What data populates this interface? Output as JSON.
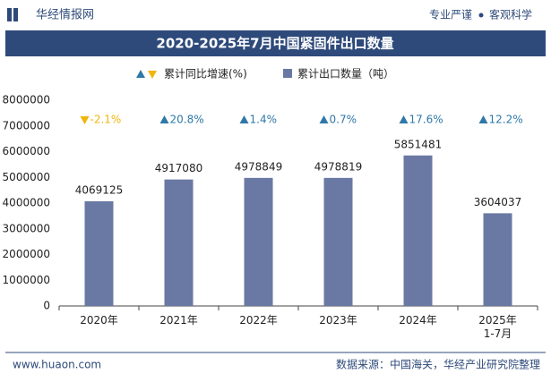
{
  "header": {
    "logo": "华经情报网",
    "slogan_left": "专业严谨",
    "slogan_right": "客观科学"
  },
  "chart_data": {
    "type": "bar",
    "title": "2020-2025年7月中国紧固件出口数量",
    "categories": [
      "2020年",
      "2021年",
      "2022年",
      "2023年",
      "2024年",
      "2025年\n1-7月"
    ],
    "series": [
      {
        "name": "累计出口数量（吨）",
        "color": "#6a79a3",
        "values": [
          4069125,
          4917080,
          4978849,
          4978819,
          5851481,
          3604037
        ]
      },
      {
        "name": "累计同比增速(%)",
        "type": "marker",
        "up_color": "#2f78a8",
        "down_color": "#f1b50c",
        "values": [
          -2.1,
          20.8,
          1.4,
          0.7,
          17.6,
          12.2
        ],
        "value_labels": [
          "-2.1%",
          "20.8%",
          "1.4%",
          "0.7%",
          "17.6%",
          "12.2%"
        ]
      }
    ],
    "ylim": [
      0,
      8000000
    ],
    "yticks": [
      0,
      1000000,
      2000000,
      3000000,
      4000000,
      5000000,
      6000000,
      7000000,
      8000000
    ],
    "grid": false
  },
  "footer": {
    "website": "www.huaon.com",
    "source": "数据来源：中国海关，华经产业研究院整理"
  }
}
